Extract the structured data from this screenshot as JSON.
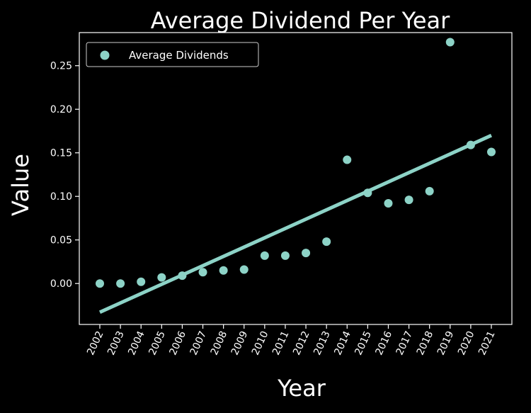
{
  "chart_data": {
    "type": "scatter",
    "title": "Average Dividend Per Year",
    "xlabel": "Year",
    "ylabel": "Value",
    "x": [
      "2002",
      "2003",
      "2004",
      "2005",
      "2006",
      "2007",
      "2008",
      "2009",
      "2010",
      "2011",
      "2012",
      "2013",
      "2014",
      "2015",
      "2016",
      "2017",
      "2018",
      "2019",
      "2020",
      "2021"
    ],
    "series": [
      {
        "name": "Average Dividends",
        "type": "scatter",
        "values": [
          0.0,
          0.0,
          0.002,
          0.007,
          0.009,
          0.013,
          0.015,
          0.016,
          0.032,
          0.032,
          0.035,
          0.048,
          0.142,
          0.104,
          0.092,
          0.096,
          0.106,
          0.277,
          0.159,
          0.151
        ]
      }
    ],
    "trendline": {
      "start": -0.033,
      "end": 0.17
    },
    "yticks": [
      "0.00",
      "0.05",
      "0.10",
      "0.15",
      "0.20",
      "0.25"
    ],
    "ylim": [
      -0.047,
      0.288
    ],
    "grid": false,
    "legend_position": "top-left",
    "colors": {
      "background": "#000000",
      "marker": "#8dd3c7",
      "axes": "#ffffff",
      "text": "#ffffff"
    }
  }
}
